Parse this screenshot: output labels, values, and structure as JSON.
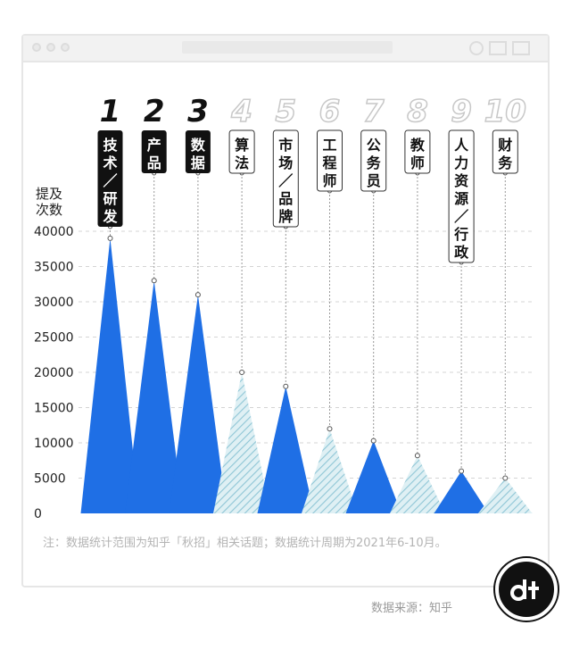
{
  "chart_data": {
    "type": "area",
    "ylabel": "提及\n次数",
    "ylim": [
      0,
      40000
    ],
    "yticks": [
      0,
      5000,
      10000,
      15000,
      20000,
      25000,
      30000,
      35000,
      40000
    ],
    "categories": [
      {
        "rank": "1",
        "label": "技术/研发",
        "value": 39000,
        "highlight": true
      },
      {
        "rank": "2",
        "label": "产品",
        "value": 33000,
        "highlight": true
      },
      {
        "rank": "3",
        "label": "数据",
        "value": 31000,
        "highlight": true
      },
      {
        "rank": "4",
        "label": "算法",
        "value": 20000,
        "highlight": false
      },
      {
        "rank": "5",
        "label": "市场/品牌",
        "value": 18000,
        "highlight": false
      },
      {
        "rank": "6",
        "label": "工程师",
        "value": 12000,
        "highlight": false
      },
      {
        "rank": "7",
        "label": "公务员",
        "value": 10300,
        "highlight": false
      },
      {
        "rank": "8",
        "label": "教师",
        "value": 8200,
        "highlight": false
      },
      {
        "rank": "9",
        "label": "人力资源/行政",
        "value": 6000,
        "highlight": false
      },
      {
        "rank": "10",
        "label": "财务",
        "value": 5000,
        "highlight": false
      }
    ],
    "grid": true
  },
  "colors": {
    "solid": "#1f6fe5",
    "hatch_bg": "#dff0f4",
    "hatch_line": "#8fc6d6",
    "label_dark": "#111111",
    "rank_outline": "#c8c8c8"
  },
  "note": "注：数据统计范围为知乎「秋招」相关话题；数据统计周期为2021年6-10月。",
  "source": "数据来源：知乎",
  "logo_icon": "dt-logo-icon"
}
